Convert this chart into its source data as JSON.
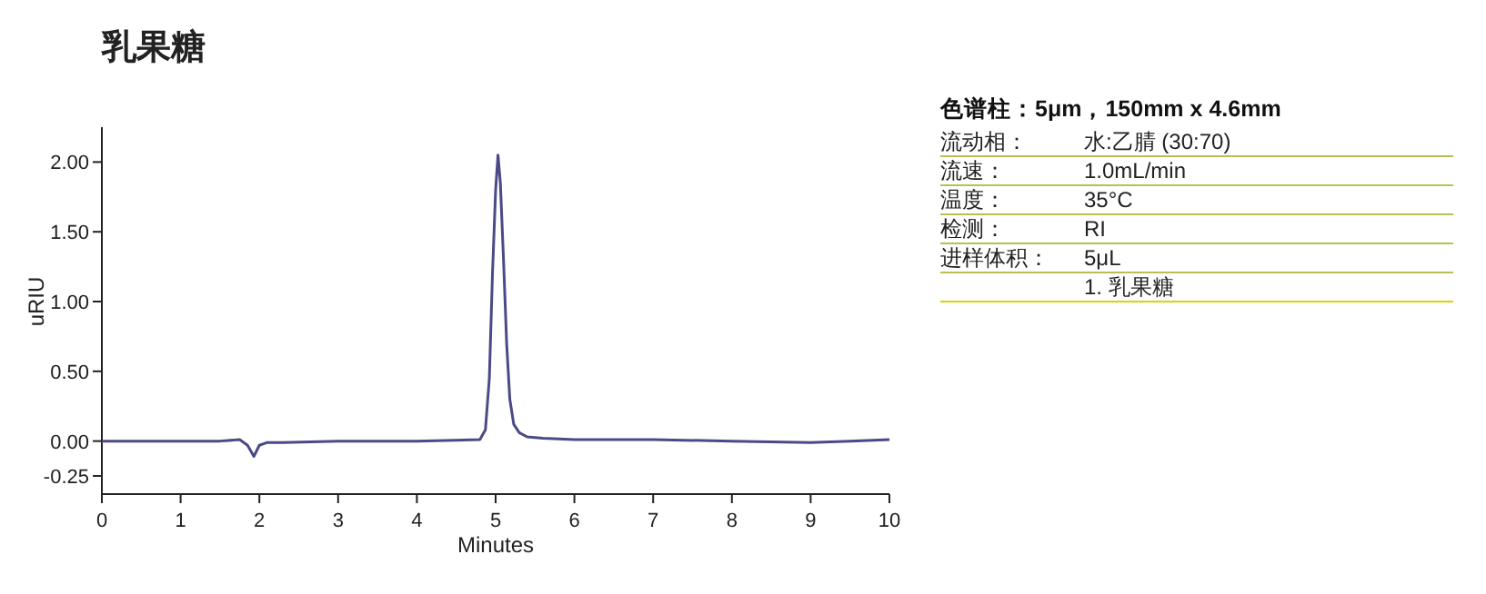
{
  "chart_data": {
    "type": "line",
    "title": "乳果糖",
    "xlabel": "Minutes",
    "ylabel": "uRIU",
    "xlim": [
      0,
      10
    ],
    "ylim": [
      -0.38,
      2.25
    ],
    "xticks": [
      0,
      1,
      2,
      3,
      4,
      5,
      6,
      7,
      8,
      9,
      10
    ],
    "yticks": [
      {
        "value": -0.25,
        "label": "-0.25"
      },
      {
        "value": 0,
        "label": "0.00"
      },
      {
        "value": 0.5,
        "label": "0.50"
      },
      {
        "value": 1,
        "label": "1.00"
      },
      {
        "value": 1.5,
        "label": "1.50"
      },
      {
        "value": 2,
        "label": "2.00"
      }
    ],
    "grid": false,
    "series": [
      {
        "color": "#4b4a86",
        "x": [
          0,
          0.5,
          1,
          1.5,
          1.75,
          1.85,
          1.93,
          2.0,
          2.1,
          2.3,
          3,
          4,
          4.8,
          4.87,
          4.92,
          4.96,
          5.0,
          5.03,
          5.06,
          5.1,
          5.14,
          5.18,
          5.23,
          5.3,
          5.4,
          5.6,
          6,
          7,
          8,
          9,
          9.5,
          10
        ],
        "values": [
          0,
          0,
          0,
          0,
          0.01,
          -0.03,
          -0.11,
          -0.03,
          -0.01,
          -0.01,
          0,
          0,
          0.01,
          0.08,
          0.45,
          1.2,
          1.8,
          2.05,
          1.85,
          1.3,
          0.7,
          0.3,
          0.12,
          0.06,
          0.03,
          0.02,
          0.01,
          0.01,
          0,
          -0.01,
          0,
          0.01
        ]
      }
    ],
    "annotations": [
      "色谱柱：5μm，150mm x 4.6mm",
      "流动相：",
      "水:乙腈 (30:70)",
      "流速：",
      "1.0mL/min",
      "温度：",
      "35°C",
      "检测：",
      "RI",
      "进样体积：",
      "5μL",
      "1. 乳果糖"
    ]
  }
}
